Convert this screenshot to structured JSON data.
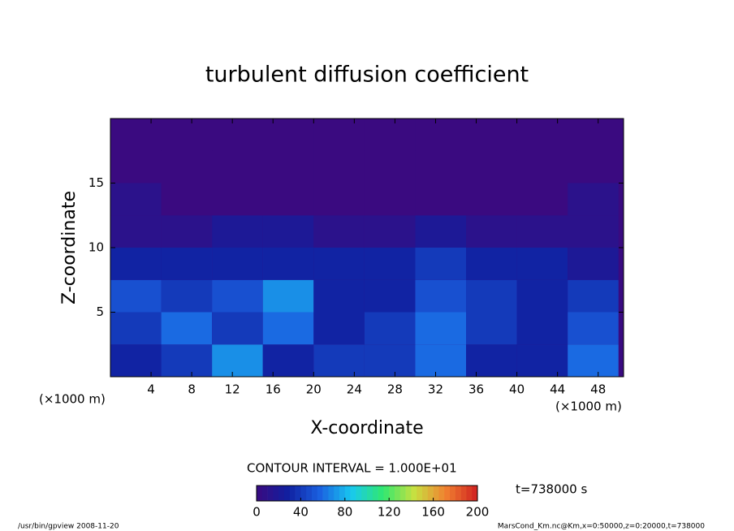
{
  "chart_data": {
    "type": "contour",
    "title": "turbulent diffusion coefficient",
    "xlabel": "X-coordinate",
    "ylabel": "Z-coordinate",
    "x_unit": "(×1000 m)",
    "y_unit": "(×1000 m)",
    "xlim": [
      0,
      50.5
    ],
    "ylim": [
      0,
      20
    ],
    "xticks": [
      4,
      8,
      12,
      16,
      20,
      24,
      28,
      32,
      36,
      40,
      44,
      48
    ],
    "yticks": [
      5,
      10,
      15
    ],
    "x": [
      2.5,
      7.5,
      12.5,
      17.5,
      22.5,
      27.5,
      32.5,
      37.5,
      42.5,
      47.5
    ],
    "y": [
      1.25,
      3.75,
      6.25,
      8.75,
      11.25,
      13.75,
      16.25,
      18.75
    ],
    "values": [
      [
        30,
        40,
        70,
        30,
        40,
        40,
        60,
        30,
        30,
        60
      ],
      [
        40,
        60,
        40,
        60,
        30,
        40,
        60,
        40,
        30,
        50
      ],
      [
        50,
        40,
        50,
        70,
        30,
        30,
        50,
        40,
        30,
        40
      ],
      [
        30,
        30,
        30,
        30,
        30,
        30,
        40,
        30,
        30,
        20
      ],
      [
        10,
        10,
        20,
        20,
        10,
        10,
        20,
        10,
        10,
        10
      ],
      [
        10,
        0,
        0,
        0,
        0,
        0,
        0,
        0,
        0,
        10
      ],
      [
        0,
        0,
        0,
        0,
        0,
        0,
        0,
        0,
        0,
        0
      ],
      [
        0,
        0,
        0,
        0,
        0,
        0,
        0,
        0,
        0,
        0
      ]
    ],
    "colormap": [
      "#3a0a80",
      "#1020a0",
      "#1a60e0",
      "#18c8f0",
      "#30e870",
      "#c8e040",
      "#f08030",
      "#d02020"
    ],
    "clim": [
      0,
      200
    ],
    "cticks": [
      0,
      40,
      80,
      120,
      160,
      200
    ],
    "contour_label": "CONTOUR INTERVAL = 1.000E+01",
    "time_label": "t=738000 s",
    "footer_left": "/usr/bin/gpview   2008-11-20",
    "footer_right": "MarsCond_Km.nc@Km,x=0:50000,z=0:20000,t=738000"
  }
}
